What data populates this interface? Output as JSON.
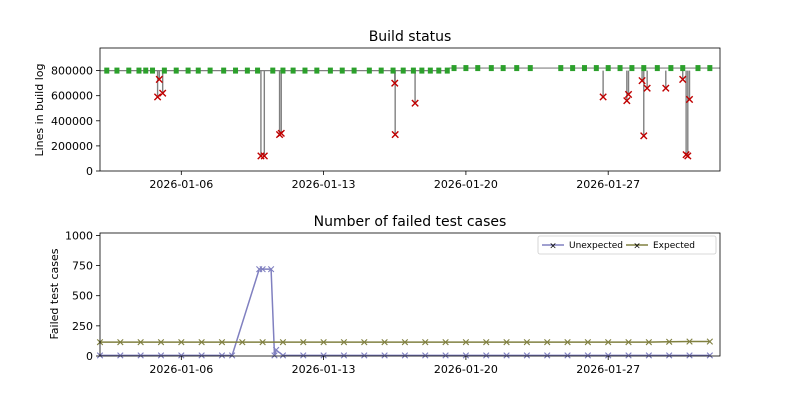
{
  "chart_data": [
    {
      "type": "scatter",
      "title": "Build status",
      "xlabel": "",
      "ylabel": "Lines in build log",
      "xlim": [
        "2026-01-02",
        "2026-02-01T12:00"
      ],
      "ylim": [
        0,
        980000
      ],
      "xticks": [
        "2026-01-06",
        "2026-01-13",
        "2026-01-20",
        "2026-01-27"
      ],
      "yticks": [
        0,
        200000,
        400000,
        600000,
        800000
      ],
      "ytick_labels": [
        "0",
        "200000",
        "400000",
        "600000",
        "800000"
      ],
      "legend": false,
      "colors": {
        "success": "#2ca02c",
        "failure": "#c00000",
        "line": "#808080"
      },
      "success_baseline_segments": [
        {
          "from": "2026-01-02",
          "to": "2026-01-19T04:00",
          "value": 800000
        },
        {
          "from": "2026-01-19T04:00",
          "to": "2026-02-01T12:00",
          "value": 820000
        }
      ],
      "success_builds": [
        {
          "x": "2026-01-02T08:00",
          "y": 800000
        },
        {
          "x": "2026-01-02T20:00",
          "y": 800000
        },
        {
          "x": "2026-01-03T10:00",
          "y": 800000
        },
        {
          "x": "2026-01-03T22:00",
          "y": 800000
        },
        {
          "x": "2026-01-04T06:00",
          "y": 800000
        },
        {
          "x": "2026-01-04T14:00",
          "y": 800000
        },
        {
          "x": "2026-01-05T04:00",
          "y": 800000
        },
        {
          "x": "2026-01-05T18:00",
          "y": 800000
        },
        {
          "x": "2026-01-06T08:00",
          "y": 800000
        },
        {
          "x": "2026-01-06T20:00",
          "y": 800000
        },
        {
          "x": "2026-01-07T10:00",
          "y": 800000
        },
        {
          "x": "2026-01-08T02:00",
          "y": 800000
        },
        {
          "x": "2026-01-08T16:00",
          "y": 800000
        },
        {
          "x": "2026-01-09T06:00",
          "y": 800000
        },
        {
          "x": "2026-01-09T18:00",
          "y": 800000
        },
        {
          "x": "2026-01-10T12:00",
          "y": 800000
        },
        {
          "x": "2026-01-11T00:00",
          "y": 800000
        },
        {
          "x": "2026-01-11T12:00",
          "y": 800000
        },
        {
          "x": "2026-01-12T02:00",
          "y": 800000
        },
        {
          "x": "2026-01-12T16:00",
          "y": 800000
        },
        {
          "x": "2026-01-13T08:00",
          "y": 800000
        },
        {
          "x": "2026-01-13T22:00",
          "y": 800000
        },
        {
          "x": "2026-01-14T12:00",
          "y": 800000
        },
        {
          "x": "2026-01-15T06:00",
          "y": 800000
        },
        {
          "x": "2026-01-15T20:00",
          "y": 800000
        },
        {
          "x": "2026-01-16T10:00",
          "y": 800000
        },
        {
          "x": "2026-01-16T22:00",
          "y": 800000
        },
        {
          "x": "2026-01-17T10:00",
          "y": 800000
        },
        {
          "x": "2026-01-17T20:00",
          "y": 800000
        },
        {
          "x": "2026-01-18T06:00",
          "y": 800000
        },
        {
          "x": "2026-01-18T16:00",
          "y": 800000
        },
        {
          "x": "2026-01-19T02:00",
          "y": 800000
        },
        {
          "x": "2026-01-19T10:00",
          "y": 820000
        },
        {
          "x": "2026-01-20T00:00",
          "y": 820000
        },
        {
          "x": "2026-01-20T14:00",
          "y": 820000
        },
        {
          "x": "2026-01-21T06:00",
          "y": 820000
        },
        {
          "x": "2026-01-21T20:00",
          "y": 820000
        },
        {
          "x": "2026-01-22T12:00",
          "y": 820000
        },
        {
          "x": "2026-01-23T04:00",
          "y": 820000
        },
        {
          "x": "2026-01-24T16:00",
          "y": 820000
        },
        {
          "x": "2026-01-25T06:00",
          "y": 820000
        },
        {
          "x": "2026-01-25T20:00",
          "y": 820000
        },
        {
          "x": "2026-01-26T10:00",
          "y": 820000
        },
        {
          "x": "2026-01-27T00:00",
          "y": 820000
        },
        {
          "x": "2026-01-27T14:00",
          "y": 820000
        },
        {
          "x": "2026-01-28T04:00",
          "y": 820000
        },
        {
          "x": "2026-01-28T18:00",
          "y": 820000
        },
        {
          "x": "2026-01-29T10:00",
          "y": 820000
        },
        {
          "x": "2026-01-30T02:00",
          "y": 820000
        },
        {
          "x": "2026-01-30T16:00",
          "y": 820000
        },
        {
          "x": "2026-01-31T10:00",
          "y": 820000
        },
        {
          "x": "2026-02-01T00:00",
          "y": 820000
        }
      ],
      "failed_builds": [
        {
          "x": "2026-01-04T20:00",
          "y": 590000
        },
        {
          "x": "2026-01-04T22:00",
          "y": 730000
        },
        {
          "x": "2026-01-05T02:00",
          "y": 620000
        },
        {
          "x": "2026-01-09T22:00",
          "y": 120000
        },
        {
          "x": "2026-01-10T02:00",
          "y": 120000
        },
        {
          "x": "2026-01-10T20:00",
          "y": 290000
        },
        {
          "x": "2026-01-10T22:00",
          "y": 300000
        },
        {
          "x": "2026-01-16T12:00",
          "y": 700000
        },
        {
          "x": "2026-01-16T12:30",
          "y": 290000
        },
        {
          "x": "2026-01-17T12:00",
          "y": 540000
        },
        {
          "x": "2026-01-26T18:00",
          "y": 590000
        },
        {
          "x": "2026-01-27T22:00",
          "y": 560000
        },
        {
          "x": "2026-01-28T00:00",
          "y": 610000
        },
        {
          "x": "2026-01-28T16:00",
          "y": 720000
        },
        {
          "x": "2026-01-28T18:00",
          "y": 280000
        },
        {
          "x": "2026-01-28T22:00",
          "y": 660000
        },
        {
          "x": "2026-01-29T20:00",
          "y": 660000
        },
        {
          "x": "2026-01-30T16:00",
          "y": 730000
        },
        {
          "x": "2026-01-30T20:00",
          "y": 130000
        },
        {
          "x": "2026-01-30T22:00",
          "y": 120000
        },
        {
          "x": "2026-01-31T00:00",
          "y": 570000
        }
      ]
    },
    {
      "type": "line",
      "title": "Number of failed test cases",
      "xlabel": "",
      "ylabel": "Failed test cases",
      "xlim": [
        "2026-01-02",
        "2026-02-01T12:00"
      ],
      "ylim": [
        0,
        1020
      ],
      "xticks": [
        "2026-01-06",
        "2026-01-13",
        "2026-01-20",
        "2026-01-27"
      ],
      "yticks": [
        0,
        250,
        500,
        750,
        1000
      ],
      "ytick_labels": [
        "0",
        "250",
        "500",
        "750",
        "1000"
      ],
      "legend": "upper-right",
      "series": [
        {
          "name": "Unexpected",
          "color": "#8080c0",
          "points": [
            {
              "x": "2026-01-02T00:00",
              "y": 5
            },
            {
              "x": "2026-01-03T00:00",
              "y": 5
            },
            {
              "x": "2026-01-04T00:00",
              "y": 5
            },
            {
              "x": "2026-01-05T00:00",
              "y": 5
            },
            {
              "x": "2026-01-06T00:00",
              "y": 5
            },
            {
              "x": "2026-01-07T00:00",
              "y": 5
            },
            {
              "x": "2026-01-08T00:00",
              "y": 5
            },
            {
              "x": "2026-01-08T12:00",
              "y": 5
            },
            {
              "x": "2026-01-09T20:00",
              "y": 720
            },
            {
              "x": "2026-01-10T00:00",
              "y": 720
            },
            {
              "x": "2026-01-10T10:00",
              "y": 720
            },
            {
              "x": "2026-01-10T14:00",
              "y": 5
            },
            {
              "x": "2026-01-10T16:00",
              "y": 50
            },
            {
              "x": "2026-01-11T00:00",
              "y": 5
            },
            {
              "x": "2026-01-12T00:00",
              "y": 5
            },
            {
              "x": "2026-01-13T00:00",
              "y": 5
            },
            {
              "x": "2026-01-14T00:00",
              "y": 5
            },
            {
              "x": "2026-01-15T00:00",
              "y": 5
            },
            {
              "x": "2026-01-16T00:00",
              "y": 5
            },
            {
              "x": "2026-01-17T00:00",
              "y": 5
            },
            {
              "x": "2026-01-18T00:00",
              "y": 5
            },
            {
              "x": "2026-01-19T00:00",
              "y": 5
            },
            {
              "x": "2026-01-20T00:00",
              "y": 5
            },
            {
              "x": "2026-01-21T00:00",
              "y": 5
            },
            {
              "x": "2026-01-22T00:00",
              "y": 5
            },
            {
              "x": "2026-01-23T00:00",
              "y": 5
            },
            {
              "x": "2026-01-24T00:00",
              "y": 5
            },
            {
              "x": "2026-01-25T00:00",
              "y": 5
            },
            {
              "x": "2026-01-26T00:00",
              "y": 5
            },
            {
              "x": "2026-01-27T00:00",
              "y": 5
            },
            {
              "x": "2026-01-28T00:00",
              "y": 5
            },
            {
              "x": "2026-01-29T00:00",
              "y": 5
            },
            {
              "x": "2026-01-30T00:00",
              "y": 5
            },
            {
              "x": "2026-01-31T00:00",
              "y": 5
            },
            {
              "x": "2026-02-01T00:00",
              "y": 5
            }
          ]
        },
        {
          "name": "Expected",
          "color": "#808040",
          "points": [
            {
              "x": "2026-01-02T00:00",
              "y": 115
            },
            {
              "x": "2026-01-03T00:00",
              "y": 115
            },
            {
              "x": "2026-01-04T00:00",
              "y": 115
            },
            {
              "x": "2026-01-05T00:00",
              "y": 115
            },
            {
              "x": "2026-01-06T00:00",
              "y": 115
            },
            {
              "x": "2026-01-07T00:00",
              "y": 115
            },
            {
              "x": "2026-01-08T00:00",
              "y": 115
            },
            {
              "x": "2026-01-09T00:00",
              "y": 115
            },
            {
              "x": "2026-01-10T00:00",
              "y": 115
            },
            {
              "x": "2026-01-11T00:00",
              "y": 115
            },
            {
              "x": "2026-01-12T00:00",
              "y": 115
            },
            {
              "x": "2026-01-13T00:00",
              "y": 115
            },
            {
              "x": "2026-01-14T00:00",
              "y": 115
            },
            {
              "x": "2026-01-15T00:00",
              "y": 115
            },
            {
              "x": "2026-01-16T00:00",
              "y": 115
            },
            {
              "x": "2026-01-17T00:00",
              "y": 115
            },
            {
              "x": "2026-01-18T00:00",
              "y": 115
            },
            {
              "x": "2026-01-19T00:00",
              "y": 115
            },
            {
              "x": "2026-01-20T00:00",
              "y": 115
            },
            {
              "x": "2026-01-21T00:00",
              "y": 115
            },
            {
              "x": "2026-01-22T00:00",
              "y": 115
            },
            {
              "x": "2026-01-23T00:00",
              "y": 115
            },
            {
              "x": "2026-01-24T00:00",
              "y": 115
            },
            {
              "x": "2026-01-25T00:00",
              "y": 115
            },
            {
              "x": "2026-01-26T00:00",
              "y": 115
            },
            {
              "x": "2026-01-27T00:00",
              "y": 115
            },
            {
              "x": "2026-01-28T00:00",
              "y": 115
            },
            {
              "x": "2026-01-29T00:00",
              "y": 115
            },
            {
              "x": "2026-01-30T00:00",
              "y": 118
            },
            {
              "x": "2026-01-31T00:00",
              "y": 120
            },
            {
              "x": "2026-02-01T00:00",
              "y": 120
            }
          ]
        }
      ]
    }
  ]
}
